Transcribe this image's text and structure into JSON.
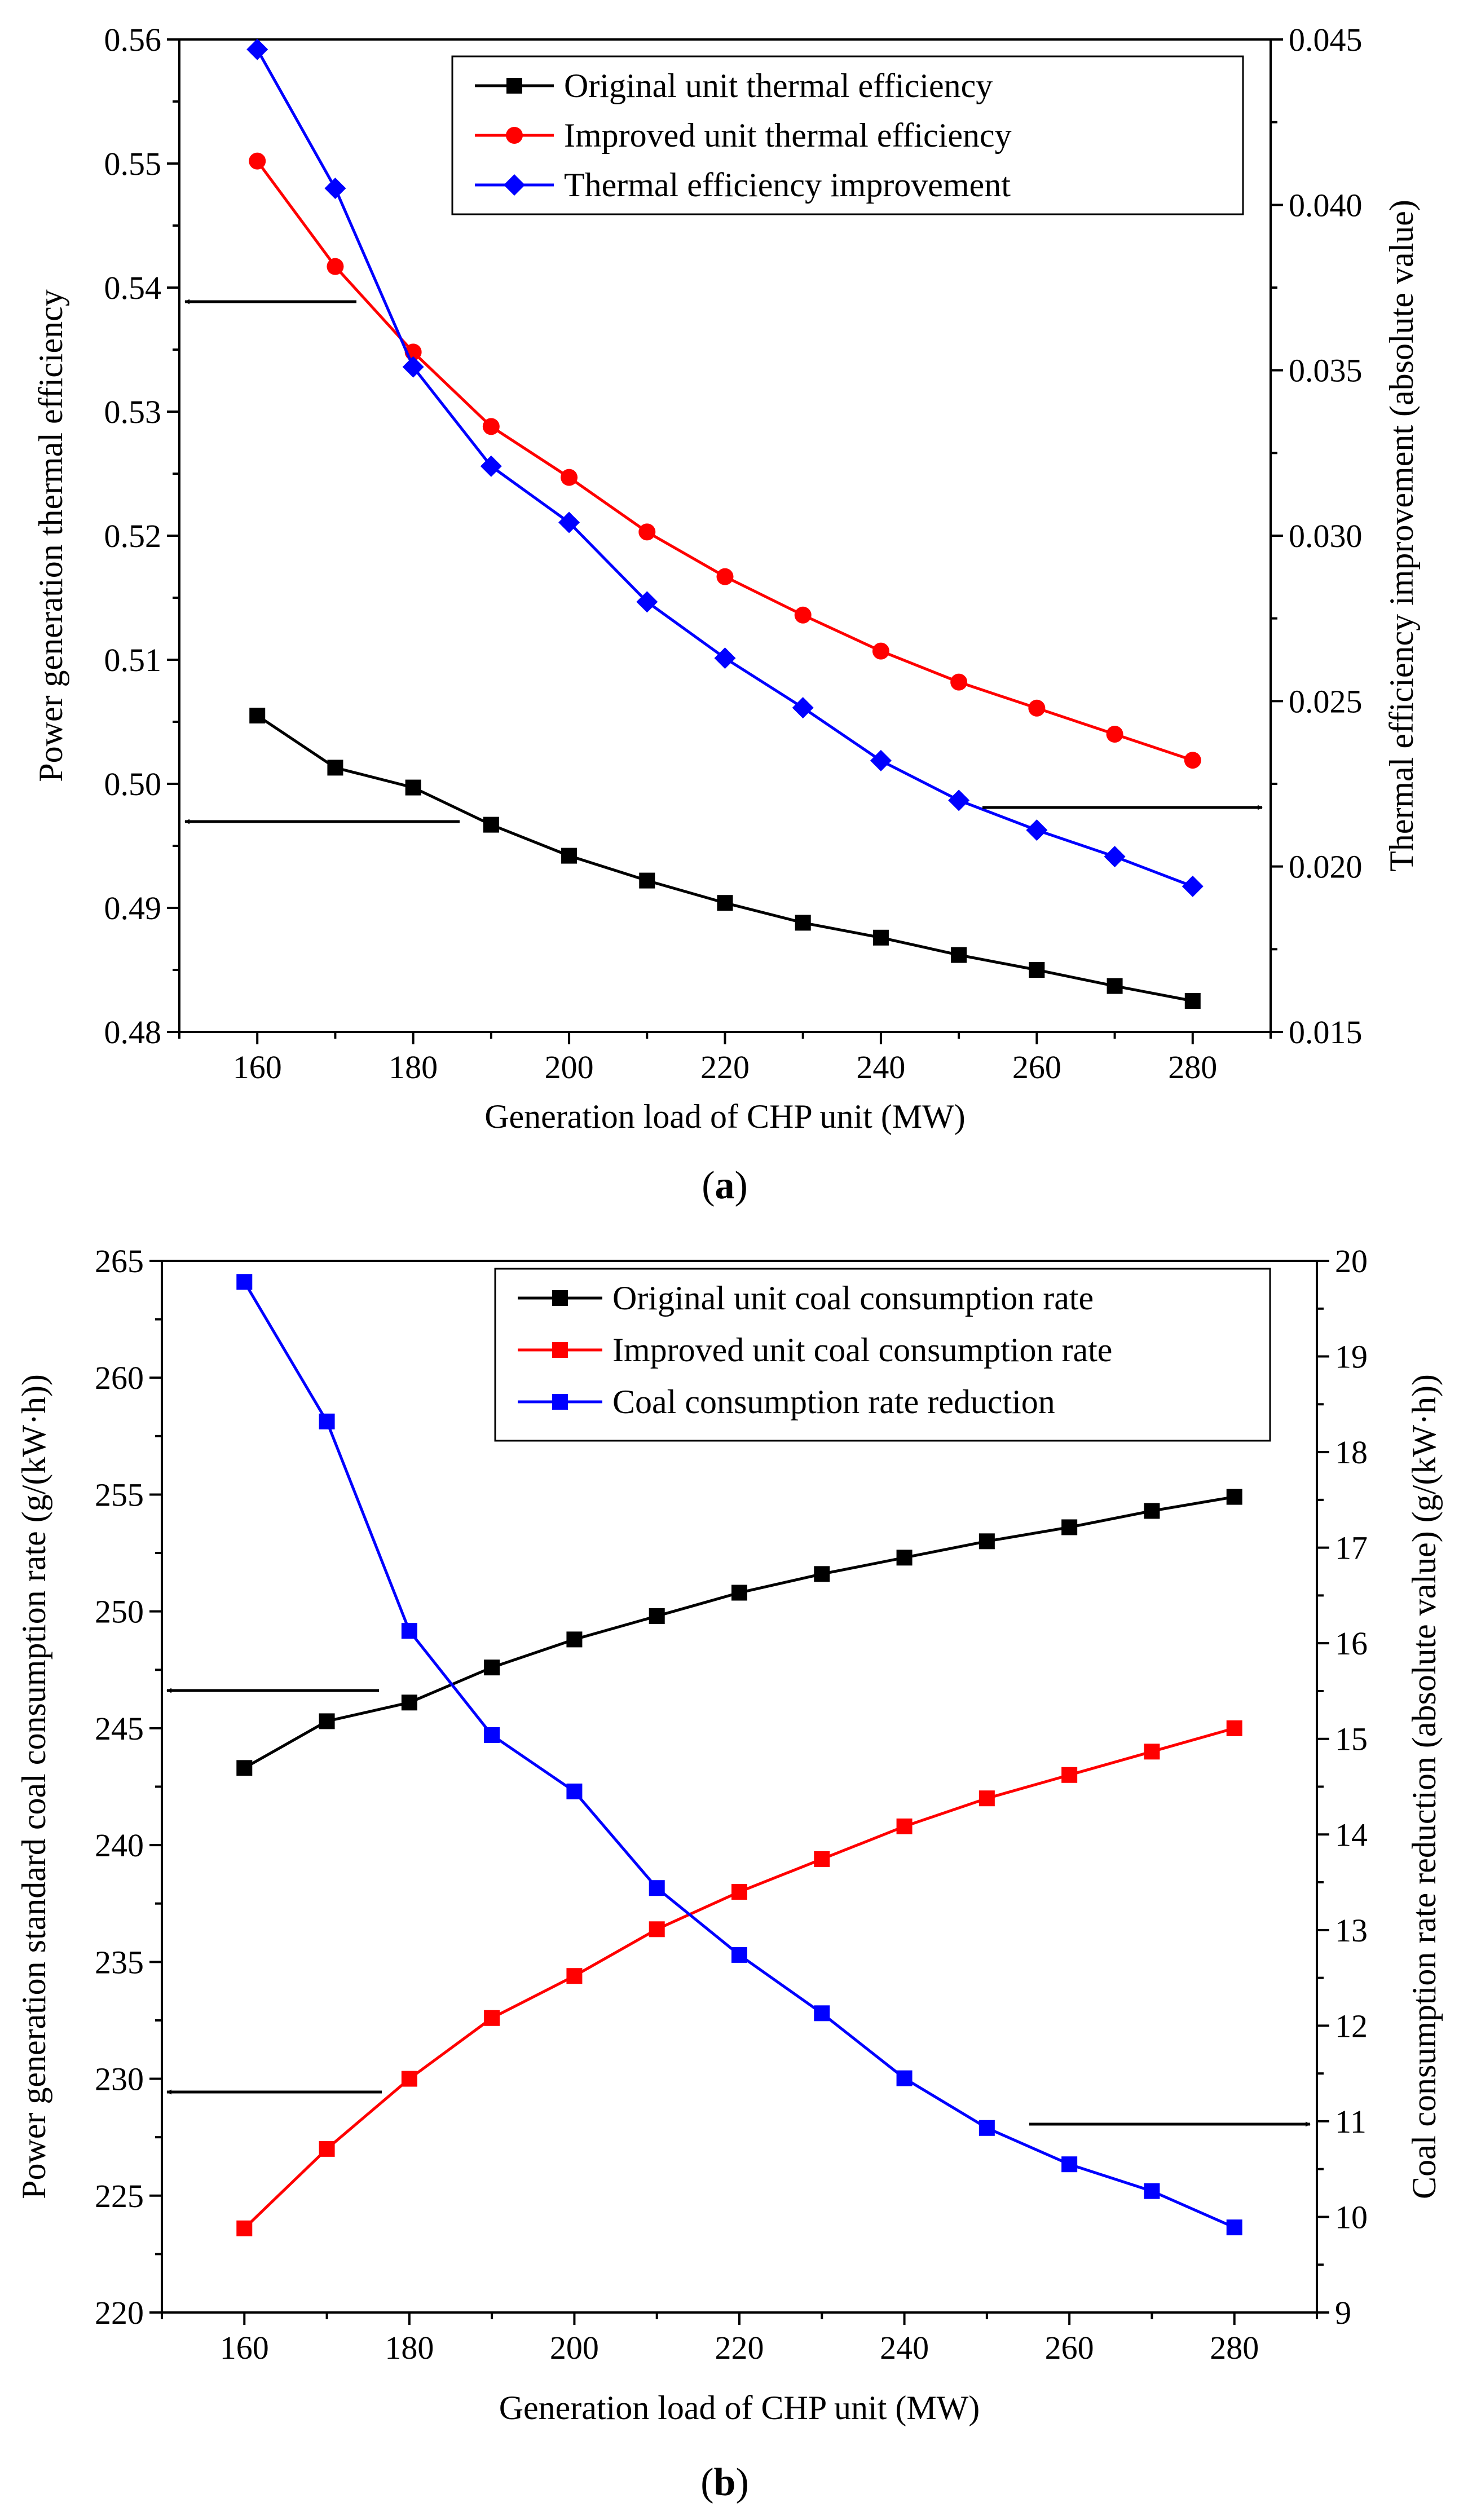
{
  "figure": {
    "caption_a": "a",
    "caption_b": "b"
  },
  "chart_data": [
    {
      "type": "line",
      "panel": "a",
      "xlabel": "Generation load of CHP unit (MW)",
      "ylabel": "Power generation thermal efficiency",
      "y2label": "Thermal efficiency improvement  (absolute value)",
      "xlim": [
        150,
        290
      ],
      "ylim": [
        0.48,
        0.56
      ],
      "y2lim": [
        0.015,
        0.045
      ],
      "xticks": [
        160,
        180,
        200,
        220,
        240,
        260,
        280
      ],
      "xtick_labels": [
        "160",
        "180",
        "200",
        "220",
        "240",
        "260",
        "280"
      ],
      "yticks": [
        0.48,
        0.49,
        0.5,
        0.51,
        0.52,
        0.53,
        0.54,
        0.55,
        0.56
      ],
      "ytick_labels": [
        "0.48",
        "0.49",
        "0.50",
        "0.51",
        "0.52",
        "0.53",
        "0.54",
        "0.55",
        "0.56"
      ],
      "y2ticks": [
        0.015,
        0.02,
        0.025,
        0.03,
        0.035,
        0.04,
        0.045
      ],
      "y2tick_labels": [
        "0.015",
        "0.020",
        "0.025",
        "0.030",
        "0.035",
        "0.040",
        "0.045"
      ],
      "x": [
        160,
        170,
        180,
        190,
        200,
        210,
        220,
        230,
        240,
        250,
        260,
        270,
        280
      ],
      "legend_position": "top-right",
      "grid": false,
      "series": [
        {
          "name": "Original unit thermal efficiency",
          "axis": "left",
          "color": "#000000",
          "marker": "square",
          "values": [
            0.5055,
            0.5013,
            0.4997,
            0.4967,
            0.4942,
            0.4922,
            0.4904,
            0.4888,
            0.4876,
            0.4862,
            0.485,
            0.4837,
            0.4825
          ]
        },
        {
          "name": "Improved unit thermal efficiency",
          "axis": "left",
          "color": "#ff0000",
          "marker": "circle",
          "values": [
            0.5502,
            0.5417,
            0.5348,
            0.5288,
            0.5247,
            0.5203,
            0.5167,
            0.5136,
            0.5107,
            0.5082,
            0.5061,
            0.504,
            0.5019
          ]
        },
        {
          "name": "Thermal efficiency improvement",
          "axis": "right",
          "color": "#0000ff",
          "marker": "diamond",
          "values": [
            0.0447,
            0.0405,
            0.0351,
            0.0321,
            0.0304,
            0.028,
            0.0263,
            0.0248,
            0.0232,
            0.022,
            0.0211,
            0.0203,
            0.0194
          ]
        }
      ]
    },
    {
      "type": "line",
      "panel": "b",
      "xlabel": "Generation load of CHP unit (MW)",
      "ylabel": "Power generation standard coal consumption rate (g/(kW·h))",
      "y2label": "Coal consumption rate reduction (absolute value) (g/(kW·h))",
      "xlim": [
        150,
        290
      ],
      "ylim": [
        220,
        265
      ],
      "y2lim": [
        9,
        20
      ],
      "xticks": [
        160,
        180,
        200,
        220,
        240,
        260,
        280
      ],
      "xtick_labels": [
        "160",
        "180",
        "200",
        "220",
        "240",
        "260",
        "280"
      ],
      "yticks": [
        220,
        225,
        230,
        235,
        240,
        245,
        250,
        255,
        260,
        265
      ],
      "ytick_labels": [
        "220",
        "225",
        "230",
        "235",
        "240",
        "245",
        "250",
        "255",
        "260",
        "265"
      ],
      "y2ticks": [
        9,
        10,
        11,
        12,
        13,
        14,
        15,
        16,
        17,
        18,
        19,
        20
      ],
      "y2tick_labels": [
        "9",
        "10",
        "11",
        "12",
        "13",
        "14",
        "15",
        "16",
        "17",
        "18",
        "19",
        "20"
      ],
      "x": [
        160,
        170,
        180,
        190,
        200,
        210,
        220,
        230,
        240,
        250,
        260,
        270,
        280
      ],
      "legend_position": "top-right",
      "grid": false,
      "series": [
        {
          "name": "Original unit coal consumption rate",
          "axis": "left",
          "color": "#000000",
          "marker": "square",
          "values": [
            243.3,
            245.3,
            246.1,
            247.6,
            248.8,
            249.8,
            250.8,
            251.6,
            252.3,
            253.0,
            253.6,
            254.3,
            254.9
          ]
        },
        {
          "name": "Improved unit coal consumption rate",
          "axis": "left",
          "color": "#ff0000",
          "marker": "square",
          "values": [
            223.6,
            227.0,
            230.0,
            232.6,
            234.4,
            236.4,
            238.0,
            239.4,
            240.8,
            242.0,
            243.0,
            244.0,
            245.0
          ]
        },
        {
          "name": "Coal consumption rate reduction",
          "axis": "right",
          "color": "#0000ff",
          "marker": "square",
          "values": [
            19.78,
            18.32,
            16.13,
            15.04,
            14.45,
            13.44,
            12.74,
            12.13,
            11.45,
            10.93,
            10.55,
            10.27,
            9.89
          ]
        }
      ]
    }
  ]
}
